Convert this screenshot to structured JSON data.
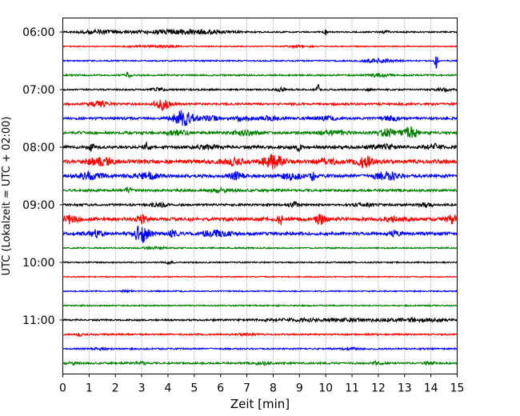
{
  "chart_data": {
    "type": "line",
    "title": "",
    "xlabel": "Zeit  [min]",
    "ylabel": "UTC (Lokalzeit = UTC + 02:00)",
    "xlim": [
      0,
      15
    ],
    "x_ticks": [
      "0",
      "1",
      "2",
      "3",
      "4",
      "5",
      "6",
      "7",
      "8",
      "9",
      "10",
      "11",
      "12",
      "13",
      "14",
      "15"
    ],
    "y_ticks": [
      "06:00",
      "07:00",
      "08:00",
      "09:00",
      "10:00",
      "11:00"
    ],
    "grid": "vertical dotted",
    "legend": "none",
    "color_cycle": [
      "#000000",
      "#ff0000",
      "#0000ff",
      "#008000"
    ],
    "traces": [
      {
        "start": "06:00",
        "color": "#000000",
        "noise": 0.25,
        "events": [
          [
            1.4,
            0.7,
            0.8
          ],
          [
            3.8,
            0.4,
            1.6
          ],
          [
            5.0,
            0.6,
            1.5
          ],
          [
            10.0,
            1.6,
            0.05
          ],
          [
            12.2,
            0.5,
            0.2
          ]
        ]
      },
      {
        "start": "06:15",
        "color": "#ff0000",
        "noise": 0.2,
        "events": [
          [
            3.5,
            0.3,
            1.0
          ],
          [
            9.0,
            0.3,
            0.5
          ]
        ]
      },
      {
        "start": "06:30",
        "color": "#0000ff",
        "noise": 0.25,
        "events": [
          [
            12.0,
            0.7,
            0.6
          ],
          [
            14.2,
            2.8,
            0.06
          ]
        ]
      },
      {
        "start": "06:45",
        "color": "#008000",
        "noise": 0.3,
        "events": [
          [
            2.5,
            1.0,
            0.1
          ],
          [
            12.0,
            0.5,
            0.4
          ]
        ]
      },
      {
        "start": "07:00",
        "color": "#000000",
        "noise": 0.3,
        "events": [
          [
            3.6,
            0.6,
            0.3
          ],
          [
            8.3,
            0.6,
            0.2
          ],
          [
            9.7,
            2.5,
            0.05
          ],
          [
            11.6,
            0.6,
            0.1
          ],
          [
            14.5,
            0.5,
            0.3
          ]
        ]
      },
      {
        "start": "07:15",
        "color": "#ff0000",
        "noise": 0.4,
        "events": [
          [
            1.4,
            1.0,
            0.4
          ],
          [
            3.8,
            2.0,
            0.3
          ]
        ]
      },
      {
        "start": "07:30",
        "color": "#0000ff",
        "noise": 0.45,
        "events": [
          [
            4.6,
            3.0,
            0.4
          ],
          [
            5.6,
            1.0,
            0.3
          ],
          [
            6.8,
            0.9,
            0.3
          ],
          [
            7.8,
            0.7,
            0.4
          ],
          [
            10.0,
            0.6,
            0.4
          ],
          [
            12.5,
            0.8,
            0.3
          ]
        ]
      },
      {
        "start": "07:45",
        "color": "#008000",
        "noise": 0.5,
        "events": [
          [
            4.4,
            0.9,
            0.4
          ],
          [
            7.0,
            0.8,
            0.5
          ],
          [
            10.2,
            0.8,
            0.6
          ],
          [
            12.3,
            1.5,
            0.3
          ],
          [
            13.2,
            2.2,
            0.3
          ]
        ]
      },
      {
        "start": "08:00",
        "color": "#000000",
        "noise": 0.55,
        "events": [
          [
            1.1,
            1.4,
            0.1
          ],
          [
            3.2,
            2.4,
            0.1
          ],
          [
            5.5,
            0.7,
            0.4
          ],
          [
            9.0,
            2.3,
            0.08
          ],
          [
            12.2,
            0.8,
            0.5
          ],
          [
            14.1,
            1.0,
            0.3
          ]
        ]
      },
      {
        "start": "08:15",
        "color": "#ff0000",
        "noise": 0.7,
        "events": [
          [
            1.4,
            1.3,
            0.5
          ],
          [
            6.4,
            1.1,
            0.4
          ],
          [
            8.0,
            2.3,
            0.4
          ],
          [
            10.0,
            1.0,
            0.4
          ],
          [
            11.5,
            1.9,
            0.3
          ]
        ]
      },
      {
        "start": "08:30",
        "color": "#0000ff",
        "noise": 0.6,
        "events": [
          [
            1.0,
            1.2,
            0.5
          ],
          [
            3.2,
            1.2,
            0.4
          ],
          [
            6.6,
            1.1,
            0.3
          ],
          [
            8.7,
            1.2,
            0.4
          ],
          [
            9.5,
            1.5,
            0.1
          ],
          [
            12.3,
            1.3,
            0.5
          ]
        ]
      },
      {
        "start": "08:45",
        "color": "#008000",
        "noise": 0.45,
        "events": [
          [
            2.5,
            1.2,
            0.1
          ],
          [
            6.0,
            0.6,
            0.4
          ]
        ]
      },
      {
        "start": "09:00",
        "color": "#000000",
        "noise": 0.4,
        "events": [
          [
            3.7,
            0.9,
            0.3
          ],
          [
            8.8,
            1.1,
            0.2
          ],
          [
            11.5,
            0.6,
            0.4
          ],
          [
            13.8,
            0.7,
            0.3
          ]
        ]
      },
      {
        "start": "09:15",
        "color": "#ff0000",
        "noise": 0.65,
        "events": [
          [
            0.3,
            1.5,
            0.3
          ],
          [
            3.0,
            1.3,
            0.2
          ],
          [
            8.3,
            1.7,
            0.1
          ],
          [
            9.8,
            1.6,
            0.2
          ],
          [
            12.6,
            0.9,
            0.4
          ],
          [
            14.8,
            1.4,
            0.2
          ]
        ]
      },
      {
        "start": "09:30",
        "color": "#0000ff",
        "noise": 0.55,
        "events": [
          [
            1.2,
            1.3,
            0.3
          ],
          [
            3.0,
            3.2,
            0.3
          ],
          [
            4.2,
            1.2,
            0.2
          ],
          [
            5.8,
            1.0,
            0.6
          ],
          [
            12.6,
            0.9,
            0.2
          ]
        ]
      },
      {
        "start": "09:45",
        "color": "#008000",
        "noise": 0.25,
        "events": [
          [
            3.5,
            0.3,
            0.5
          ]
        ]
      },
      {
        "start": "10:00",
        "color": "#000000",
        "noise": 0.25,
        "events": [
          [
            4.0,
            0.4,
            0.2
          ]
        ]
      },
      {
        "start": "10:15",
        "color": "#ff0000",
        "noise": 0.2,
        "events": []
      },
      {
        "start": "10:30",
        "color": "#0000ff",
        "noise": 0.22,
        "events": [
          [
            2.4,
            0.3,
            0.2
          ]
        ]
      },
      {
        "start": "10:45",
        "color": "#008000",
        "noise": 0.25,
        "events": []
      },
      {
        "start": "11:00",
        "color": "#000000",
        "noise": 0.3,
        "events": [
          [
            10.0,
            0.5,
            2.5
          ],
          [
            13.5,
            0.5,
            1.0
          ]
        ]
      },
      {
        "start": "11:15",
        "color": "#ff0000",
        "noise": 0.3,
        "events": [
          [
            0.6,
            0.7,
            0.1
          ],
          [
            7.0,
            0.4,
            0.3
          ]
        ]
      },
      {
        "start": "11:30",
        "color": "#0000ff",
        "noise": 0.3,
        "events": [
          [
            1.4,
            0.4,
            0.2
          ],
          [
            11.0,
            0.4,
            0.3
          ]
        ]
      },
      {
        "start": "11:45",
        "color": "#008000",
        "noise": 0.35,
        "events": [
          [
            0.4,
            0.5,
            0.2
          ],
          [
            3.0,
            0.5,
            0.2
          ],
          [
            7.6,
            0.5,
            0.3
          ],
          [
            12.0,
            0.5,
            0.2
          ],
          [
            14.0,
            0.5,
            0.2
          ]
        ]
      }
    ]
  }
}
